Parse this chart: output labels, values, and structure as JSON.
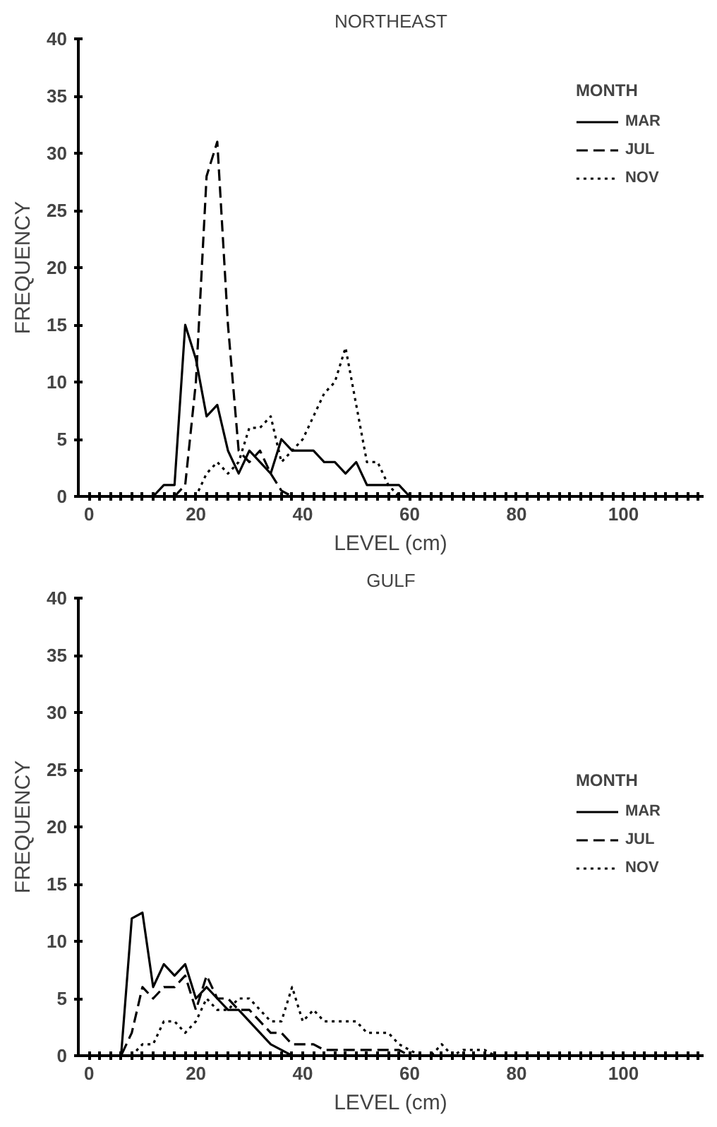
{
  "chart_data": [
    {
      "type": "line",
      "title": "NORTHEAST",
      "xlabel": "LEVEL (cm)",
      "ylabel": "FREQUENCY",
      "legend_title": "MONTH",
      "legend": "top right",
      "grid": false,
      "marker": "none",
      "x": [
        0,
        2,
        4,
        6,
        8,
        10,
        12,
        14,
        16,
        18,
        20,
        22,
        24,
        26,
        28,
        30,
        32,
        34,
        36,
        38,
        40,
        42,
        44,
        46,
        48,
        50,
        52,
        54,
        56,
        58,
        60,
        62,
        64,
        66,
        68,
        70,
        72,
        74,
        76,
        78,
        80,
        82,
        84,
        86,
        88,
        90,
        92,
        94,
        96,
        98,
        100,
        102,
        104,
        106,
        108,
        110,
        112,
        114
      ],
      "xlim": [
        -2,
        115
      ],
      "ylim": [
        0,
        40
      ],
      "xticks": [
        0,
        {
          "value": 2,
          "label": null
        },
        {
          "value": 4,
          "label": null
        },
        {
          "value": 6,
          "label": null
        },
        {
          "value": 8,
          "label": null
        },
        {
          "value": 10,
          "label": null
        },
        {
          "value": 12,
          "label": null
        },
        {
          "value": 14,
          "label": null
        },
        {
          "value": 16,
          "label": null
        },
        {
          "value": 18,
          "label": null
        },
        20,
        {
          "value": 22,
          "label": null
        },
        {
          "value": 24,
          "label": null
        },
        {
          "value": 26,
          "label": null
        },
        {
          "value": 28,
          "label": null
        },
        {
          "value": 30,
          "label": null
        },
        {
          "value": 32,
          "label": null
        },
        {
          "value": 34,
          "label": null
        },
        {
          "value": 36,
          "label": null
        },
        {
          "value": 38,
          "label": null
        },
        40,
        {
          "value": 42,
          "label": null
        },
        {
          "value": 44,
          "label": null
        },
        {
          "value": 46,
          "label": null
        },
        {
          "value": 48,
          "label": null
        },
        {
          "value": 50,
          "label": null
        },
        {
          "value": 52,
          "label": null
        },
        {
          "value": 54,
          "label": null
        },
        {
          "value": 56,
          "label": null
        },
        {
          "value": 58,
          "label": null
        },
        60,
        {
          "value": 62,
          "label": null
        },
        {
          "value": 64,
          "label": null
        },
        {
          "value": 66,
          "label": null
        },
        {
          "value": 68,
          "label": null
        },
        {
          "value": 70,
          "label": null
        },
        {
          "value": 72,
          "label": null
        },
        {
          "value": 74,
          "label": null
        },
        {
          "value": 76,
          "label": null
        },
        {
          "value": 78,
          "label": null
        },
        80,
        {
          "value": 82,
          "label": null
        },
        {
          "value": 84,
          "label": null
        },
        {
          "value": 86,
          "label": null
        },
        {
          "value": 88,
          "label": null
        },
        {
          "value": 90,
          "label": null
        },
        {
          "value": 92,
          "label": null
        },
        {
          "value": 94,
          "label": null
        },
        {
          "value": 96,
          "label": null
        },
        {
          "value": 98,
          "label": null
        },
        100,
        {
          "value": 102,
          "label": null
        },
        {
          "value": 104,
          "label": null
        },
        {
          "value": 106,
          "label": null
        },
        {
          "value": 108,
          "label": null
        },
        {
          "value": 110,
          "label": null
        },
        {
          "value": 112,
          "label": null
        },
        {
          "value": 114,
          "label": null
        }
      ],
      "yticks": [
        0,
        5,
        10,
        15,
        20,
        25,
        30,
        35,
        40
      ],
      "series": [
        {
          "name": "MAR",
          "color": "#000000",
          "line_style": "solid",
          "values": [
            0,
            0,
            0,
            0,
            0,
            0,
            0,
            1,
            1,
            15,
            12,
            7,
            8,
            4,
            2,
            4,
            3,
            2,
            5,
            4,
            4,
            4,
            3,
            3,
            2,
            3,
            1,
            1,
            1,
            1,
            0,
            0,
            0,
            0,
            0,
            0,
            0,
            0,
            0,
            0,
            0,
            0,
            0,
            0,
            0,
            0,
            0,
            0,
            0,
            0,
            0,
            0,
            0,
            0,
            0,
            0,
            0,
            0
          ]
        },
        {
          "name": "JUL",
          "color": "#000000",
          "line_style": "dashed",
          "values": [
            0,
            0,
            0,
            0,
            0,
            0,
            0,
            0,
            0,
            1,
            10,
            28,
            31,
            15,
            4,
            3,
            4,
            2,
            0.5,
            0,
            0,
            0,
            0,
            0,
            0,
            0,
            0,
            0,
            0,
            0,
            0,
            0,
            0,
            0,
            0,
            0,
            0,
            0,
            0,
            0,
            0,
            0,
            0,
            0,
            0,
            0,
            0,
            0,
            0,
            0,
            0,
            0,
            0,
            0,
            0,
            0,
            0,
            0
          ]
        },
        {
          "name": "NOV",
          "color": "#000000",
          "line_style": "dotted",
          "values": [
            0,
            0,
            0,
            0,
            0,
            0,
            0,
            0,
            0,
            0,
            0,
            2,
            3,
            2,
            3,
            6,
            6,
            7,
            3,
            4,
            5,
            7,
            9,
            10,
            13,
            8,
            3,
            3,
            1,
            0,
            0,
            0,
            0,
            0,
            0,
            0,
            0,
            0,
            0,
            0,
            0,
            0,
            0,
            0,
            0,
            0,
            0,
            0,
            0,
            0,
            0,
            0,
            0,
            0,
            0,
            0,
            0,
            0
          ]
        }
      ]
    },
    {
      "type": "line",
      "title": "GULF",
      "xlabel": "LEVEL (cm)",
      "ylabel": "FREQUENCY",
      "legend_title": "MONTH",
      "legend": "right",
      "grid": false,
      "marker": "none",
      "x": [
        0,
        2,
        4,
        6,
        8,
        10,
        12,
        14,
        16,
        18,
        20,
        22,
        24,
        26,
        28,
        30,
        32,
        34,
        36,
        38,
        40,
        42,
        44,
        46,
        48,
        50,
        52,
        54,
        56,
        58,
        60,
        62,
        64,
        66,
        68,
        70,
        72,
        74,
        76,
        78,
        80,
        82,
        84,
        86,
        88,
        90,
        92,
        94,
        96,
        98,
        100,
        102,
        104,
        106,
        108,
        110,
        112,
        114
      ],
      "xlim": [
        -2,
        115
      ],
      "ylim": [
        0,
        40
      ],
      "xticks": [
        0,
        {
          "value": 2,
          "label": null
        },
        {
          "value": 4,
          "label": null
        },
        {
          "value": 6,
          "label": null
        },
        {
          "value": 8,
          "label": null
        },
        {
          "value": 10,
          "label": null
        },
        {
          "value": 12,
          "label": null
        },
        {
          "value": 14,
          "label": null
        },
        {
          "value": 16,
          "label": null
        },
        {
          "value": 18,
          "label": null
        },
        20,
        {
          "value": 22,
          "label": null
        },
        {
          "value": 24,
          "label": null
        },
        {
          "value": 26,
          "label": null
        },
        {
          "value": 28,
          "label": null
        },
        {
          "value": 30,
          "label": null
        },
        {
          "value": 32,
          "label": null
        },
        {
          "value": 34,
          "label": null
        },
        {
          "value": 36,
          "label": null
        },
        {
          "value": 38,
          "label": null
        },
        40,
        {
          "value": 42,
          "label": null
        },
        {
          "value": 44,
          "label": null
        },
        {
          "value": 46,
          "label": null
        },
        {
          "value": 48,
          "label": null
        },
        {
          "value": 50,
          "label": null
        },
        {
          "value": 52,
          "label": null
        },
        {
          "value": 54,
          "label": null
        },
        {
          "value": 56,
          "label": null
        },
        {
          "value": 58,
          "label": null
        },
        60,
        {
          "value": 62,
          "label": null
        },
        {
          "value": 64,
          "label": null
        },
        {
          "value": 66,
          "label": null
        },
        {
          "value": 68,
          "label": null
        },
        {
          "value": 70,
          "label": null
        },
        {
          "value": 72,
          "label": null
        },
        {
          "value": 74,
          "label": null
        },
        {
          "value": 76,
          "label": null
        },
        {
          "value": 78,
          "label": null
        },
        80,
        {
          "value": 82,
          "label": null
        },
        {
          "value": 84,
          "label": null
        },
        {
          "value": 86,
          "label": null
        },
        {
          "value": 88,
          "label": null
        },
        {
          "value": 90,
          "label": null
        },
        {
          "value": 92,
          "label": null
        },
        {
          "value": 94,
          "label": null
        },
        {
          "value": 96,
          "label": null
        },
        {
          "value": 98,
          "label": null
        },
        100,
        {
          "value": 102,
          "label": null
        },
        {
          "value": 104,
          "label": null
        },
        {
          "value": 106,
          "label": null
        },
        {
          "value": 108,
          "label": null
        },
        {
          "value": 110,
          "label": null
        },
        {
          "value": 112,
          "label": null
        },
        {
          "value": 114,
          "label": null
        }
      ],
      "yticks": [
        0,
        5,
        10,
        15,
        20,
        25,
        30,
        35,
        40
      ],
      "series": [
        {
          "name": "MAR",
          "color": "#000000",
          "line_style": "solid",
          "values": [
            0,
            0,
            0,
            0,
            12,
            12.5,
            6,
            8,
            7,
            8,
            5,
            6,
            5,
            4,
            4,
            3,
            2,
            1,
            0.5,
            0,
            0,
            0,
            0,
            0,
            0,
            0,
            0,
            0,
            0,
            0,
            0,
            0,
            0,
            0,
            0,
            0,
            0,
            0,
            0,
            0,
            0,
            0,
            0,
            0,
            0,
            0,
            0,
            0,
            0,
            0,
            0,
            0,
            0,
            0,
            0,
            0,
            0,
            0
          ]
        },
        {
          "name": "JUL",
          "color": "#000000",
          "line_style": "dashed",
          "values": [
            0,
            0,
            0,
            0,
            2,
            6,
            5,
            6,
            6,
            7,
            4,
            7,
            5,
            5,
            4,
            4,
            3,
            2,
            2,
            1,
            1,
            1,
            0.5,
            0.5,
            0.5,
            0.5,
            0.5,
            0.5,
            0.5,
            0.5,
            0,
            0,
            0,
            0,
            0,
            0,
            0,
            0,
            0,
            0,
            0,
            0,
            0,
            0,
            0,
            0,
            0,
            0,
            0,
            0,
            0,
            0,
            0,
            0,
            0,
            0,
            0,
            0
          ]
        },
        {
          "name": "NOV",
          "color": "#000000",
          "line_style": "dotted",
          "values": [
            0,
            0,
            0,
            0,
            0,
            1,
            1,
            3,
            3,
            2,
            3,
            5,
            4,
            4,
            5,
            5,
            4,
            3,
            3,
            6,
            3,
            4,
            3,
            3,
            3,
            3,
            2,
            2,
            2,
            1,
            0.5,
            0,
            0,
            1,
            0,
            0.5,
            0.5,
            0.5,
            0,
            0,
            0,
            0,
            0,
            0,
            0,
            0,
            0,
            0,
            0,
            0,
            0,
            0,
            0,
            0,
            0,
            0,
            0,
            0
          ]
        }
      ]
    }
  ]
}
